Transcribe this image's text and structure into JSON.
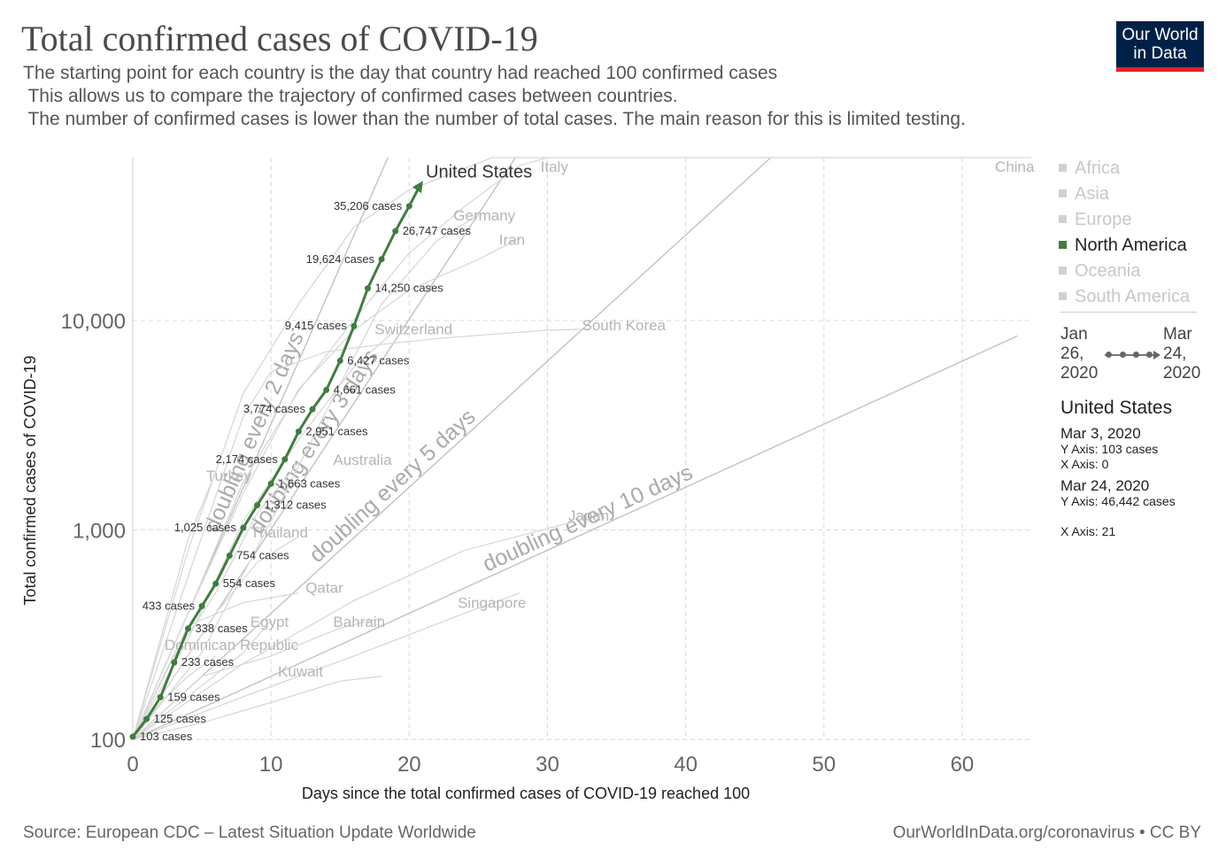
{
  "header": {
    "title": "Total confirmed cases of COVID-19",
    "subtitle_lines": [
      "The starting point for each country is the day that country had reached 100 confirmed cases",
      " This allows us to compare the trajectory of confirmed cases between countries.",
      " The number of confirmed cases is lower than the number of total cases. The main reason for this is limited testing."
    ],
    "logo_line1": "Our World",
    "logo_line2": "in Data"
  },
  "footer": {
    "source": "Source: European CDC – Latest Situation Update Worldwide",
    "license": "OurWorldInData.org/coronavirus • CC BY"
  },
  "legend": {
    "items": [
      {
        "label": "Africa",
        "active": false
      },
      {
        "label": "Asia",
        "active": false
      },
      {
        "label": "Europe",
        "active": false
      },
      {
        "label": "North America",
        "active": true
      },
      {
        "label": "Oceania",
        "active": false
      },
      {
        "label": "South America",
        "active": false
      }
    ]
  },
  "timeline": {
    "start": [
      "Jan",
      "26,",
      "2020"
    ],
    "end": [
      "Mar",
      "24,",
      "2020"
    ]
  },
  "info": {
    "country": "United States",
    "start_date": "Mar 3, 2020",
    "start_y": "Y Axis: 103 cases",
    "start_x": "X Axis: 0",
    "end_date": "Mar 24, 2020",
    "end_y": "Y Axis: 46,442 cases",
    "end_x": "X Axis: 21"
  },
  "colors": {
    "highlight": "#3f7d3f",
    "background_lines": "#d8d8d8",
    "doubling_lines": "#c2c2c2",
    "grid": "#d9d9d9"
  },
  "chart_data": {
    "type": "line",
    "title": "Total confirmed cases of COVID-19",
    "xlabel": "Days since the total confirmed cases of COVID-19 reached 100",
    "ylabel": "Total confirmed cases of COVID-19",
    "x_scale": "linear",
    "y_scale": "log",
    "xlim": [
      0,
      65
    ],
    "ylim": [
      100,
      60000
    ],
    "x_ticks": [
      0,
      10,
      20,
      30,
      40,
      50,
      60
    ],
    "x_tick_labels": [
      "0",
      "10",
      "20",
      "30",
      "40",
      "50",
      "60"
    ],
    "y_ticks": [
      100,
      1000,
      10000
    ],
    "y_tick_labels": [
      "100",
      "1,000",
      "10,000"
    ],
    "grid": true,
    "highlighted_series": {
      "name": "United States",
      "x": [
        0,
        1,
        2,
        3,
        4,
        5,
        6,
        7,
        8,
        9,
        10,
        11,
        12,
        13,
        14,
        15,
        16,
        17,
        18,
        19,
        20,
        21
      ],
      "y": [
        103,
        125,
        159,
        233,
        338,
        433,
        554,
        754,
        1025,
        1312,
        1663,
        2174,
        2951,
        3774,
        4661,
        6427,
        9415,
        14250,
        19624,
        26747,
        35206,
        46442
      ],
      "point_labels": [
        {
          "x": 0,
          "y": 103,
          "text": "103 cases"
        },
        {
          "x": 1,
          "y": 125,
          "text": "125 cases"
        },
        {
          "x": 2,
          "y": 159,
          "text": "159 cases"
        },
        {
          "x": 3,
          "y": 233,
          "text": "233 cases"
        },
        {
          "x": 4,
          "y": 338,
          "text": "338 cases"
        },
        {
          "x": 5,
          "y": 433,
          "text": "433 cases"
        },
        {
          "x": 6,
          "y": 554,
          "text": "554 cases"
        },
        {
          "x": 7,
          "y": 754,
          "text": "754 cases"
        },
        {
          "x": 8,
          "y": 1025,
          "text": "1,025 cases"
        },
        {
          "x": 9,
          "y": 1312,
          "text": "1,312 cases"
        },
        {
          "x": 10,
          "y": 1663,
          "text": "1,663 cases"
        },
        {
          "x": 11,
          "y": 2174,
          "text": "2,174 cases"
        },
        {
          "x": 12,
          "y": 2951,
          "text": "2,951 cases"
        },
        {
          "x": 13,
          "y": 3774,
          "text": "3,774 cases"
        },
        {
          "x": 14,
          "y": 4661,
          "text": "4,661 cases"
        },
        {
          "x": 15,
          "y": 6427,
          "text": "6,427 cases"
        },
        {
          "x": 16,
          "y": 9415,
          "text": "9,415 cases"
        },
        {
          "x": 17,
          "y": 14250,
          "text": "14,250 cases"
        },
        {
          "x": 18,
          "y": 19624,
          "text": "19,624 cases"
        },
        {
          "x": 19,
          "y": 26747,
          "text": "26,747 cases"
        },
        {
          "x": 20,
          "y": 35206,
          "text": "35,206 cases"
        }
      ]
    },
    "doubling_lines": [
      {
        "label": "doubling every 2 days",
        "days": 2
      },
      {
        "label": "doubling every 3 days",
        "days": 3
      },
      {
        "label": "doubling every 5 days",
        "days": 5
      },
      {
        "label": "doubling every 10 days",
        "days": 10
      }
    ],
    "background_series": [
      {
        "name": "China",
        "x": [
          0,
          4,
          8,
          12,
          16,
          20,
          26,
          32,
          40,
          50,
          58,
          65
        ],
        "y": [
          100,
          800,
          4500,
          12000,
          28000,
          42000,
          60000,
          70000,
          77000,
          80500,
          81200,
          81500
        ]
      },
      {
        "name": "Italy",
        "x": [
          0,
          4,
          8,
          12,
          16,
          20,
          24,
          28,
          30
        ],
        "y": [
          100,
          400,
          1700,
          4600,
          10100,
          21000,
          35000,
          55000,
          63900
        ]
      },
      {
        "name": "Germany",
        "x": [
          0,
          5,
          10,
          14,
          18,
          22,
          25
        ],
        "y": [
          100,
          260,
          1100,
          3700,
          12000,
          24000,
          32000
        ]
      },
      {
        "name": "Iran",
        "x": [
          0,
          4,
          8,
          12,
          16,
          20,
          25,
          28
        ],
        "y": [
          100,
          400,
          1500,
          4700,
          9000,
          14000,
          19600,
          24800
        ]
      },
      {
        "name": "Switzerland",
        "x": [
          0,
          4,
          8,
          12,
          16,
          19
        ],
        "y": [
          100,
          300,
          1100,
          2700,
          6000,
          9000
        ]
      },
      {
        "name": "South Korea",
        "x": [
          0,
          4,
          8,
          10,
          14,
          18,
          22,
          26,
          30,
          33
        ],
        "y": [
          100,
          600,
          3500,
          5700,
          7100,
          7700,
          8200,
          8600,
          9000,
          9100
        ]
      },
      {
        "name": "Australia",
        "x": [
          0,
          3,
          6,
          9,
          12
        ],
        "y": [
          100,
          250,
          500,
          1200,
          2100
        ]
      },
      {
        "name": "Turkey",
        "x": [
          0,
          2,
          4,
          6
        ],
        "y": [
          100,
          300,
          900,
          1900
        ]
      },
      {
        "name": "Thailand",
        "x": [
          0,
          3,
          6,
          9,
          12
        ],
        "y": [
          100,
          200,
          400,
          700,
          930
        ]
      },
      {
        "name": "Japan",
        "x": [
          0,
          8,
          16,
          24,
          32
        ],
        "y": [
          100,
          230,
          460,
          800,
          1100
        ]
      },
      {
        "name": "Qatar",
        "x": [
          0,
          4,
          8,
          12
        ],
        "y": [
          100,
          350,
          450,
          500
        ]
      },
      {
        "name": "Singapore",
        "x": [
          0,
          8,
          16,
          24,
          28
        ],
        "y": [
          100,
          160,
          250,
          400,
          500
        ]
      },
      {
        "name": "Egypt",
        "x": [
          0,
          4,
          8,
          10
        ],
        "y": [
          100,
          160,
          260,
          370
        ]
      },
      {
        "name": "Bahrain",
        "x": [
          0,
          5,
          10,
          15,
          18
        ],
        "y": [
          100,
          200,
          250,
          340,
          380
        ]
      },
      {
        "name": "Dominican Republic",
        "x": [
          0,
          2,
          4,
          6
        ],
        "y": [
          100,
          150,
          200,
          250
        ]
      },
      {
        "name": "Kuwait",
        "x": [
          0,
          5,
          10,
          15,
          18
        ],
        "y": [
          100,
          120,
          150,
          190,
          200
        ]
      }
    ],
    "series_labels": [
      {
        "name": "China",
        "x": 63.8,
        "y": 64000
      },
      {
        "name": "Italy",
        "x": 29.5,
        "y": 64000
      },
      {
        "name": "United States",
        "x": 21.2,
        "y": 52000
      },
      {
        "name": "Germany",
        "x": 23.2,
        "y": 30000
      },
      {
        "name": "Iran",
        "x": 26.5,
        "y": 23000
      },
      {
        "name": "Switzerland",
        "x": 17.5,
        "y": 8600
      },
      {
        "name": "South Korea",
        "x": 32.5,
        "y": 9000
      },
      {
        "name": "Australia",
        "x": 14.5,
        "y": 2050
      },
      {
        "name": "Turkey",
        "x": 5.3,
        "y": 1720
      },
      {
        "name": "Thailand",
        "x": 8.5,
        "y": 920
      },
      {
        "name": "Japan",
        "x": 31.5,
        "y": 1110
      },
      {
        "name": "Qatar",
        "x": 12.5,
        "y": 500
      },
      {
        "name": "Singapore",
        "x": 23.5,
        "y": 425
      },
      {
        "name": "Egypt",
        "x": 8.5,
        "y": 345
      },
      {
        "name": "Bahrain",
        "x": 14.5,
        "y": 345
      },
      {
        "name": "Dominican Republic",
        "x": 2.3,
        "y": 268
      },
      {
        "name": "Kuwait",
        "x": 10.5,
        "y": 200
      }
    ]
  }
}
